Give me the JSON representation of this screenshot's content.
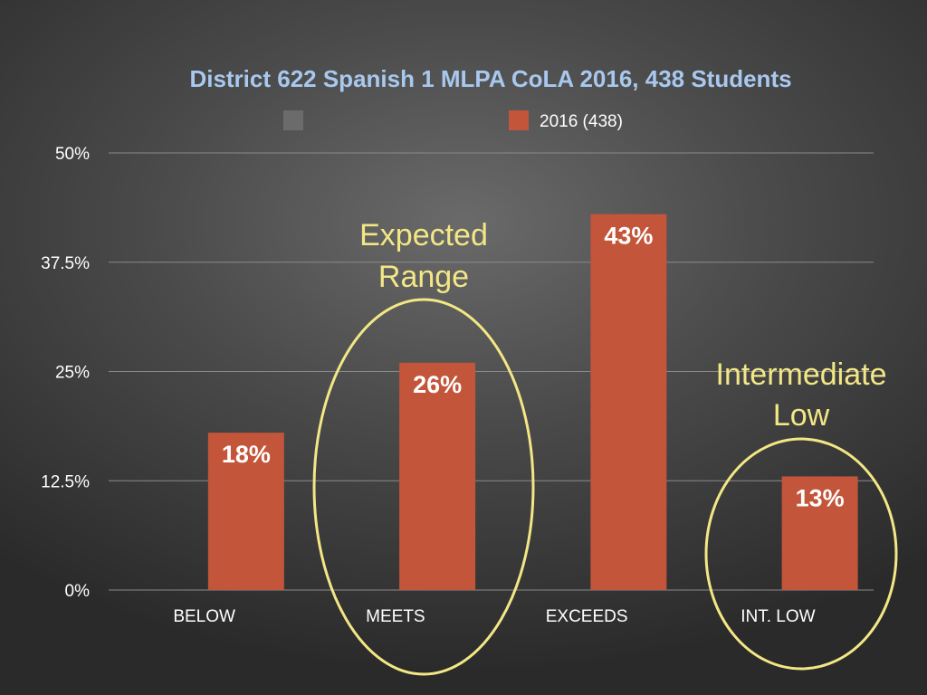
{
  "chart_data": {
    "type": "bar",
    "title": "District 622 Spanish 1 MLPA CoLA 2016, 438 Students",
    "categories": [
      "BELOW",
      "MEETS",
      "EXCEEDS",
      "INT. LOW"
    ],
    "series": [
      {
        "name": "",
        "values": [
          null,
          null,
          null,
          null
        ]
      },
      {
        "name": "2016 (438)",
        "values": [
          18,
          26,
          43,
          13
        ]
      }
    ],
    "data_labels": [
      "18%",
      "26%",
      "43%",
      "13%"
    ],
    "y_ticks": [
      "0%",
      "12.5%",
      "25%",
      "37.5%",
      "50%"
    ],
    "ylim": [
      0,
      50
    ],
    "grid": true,
    "legend_position": "top",
    "colors": {
      "bar": "#c2553a",
      "legend_empty": "#6b6b6b",
      "title": "#a8c8ee",
      "annotation": "#f3e785",
      "grid": "#8a8a8a",
      "text": "#ffffff"
    },
    "annotations": [
      {
        "text": [
          "Expected",
          "Range"
        ],
        "category": "MEETS"
      },
      {
        "text": [
          "Intermediate",
          "Low"
        ],
        "category": "INT. LOW"
      }
    ]
  }
}
